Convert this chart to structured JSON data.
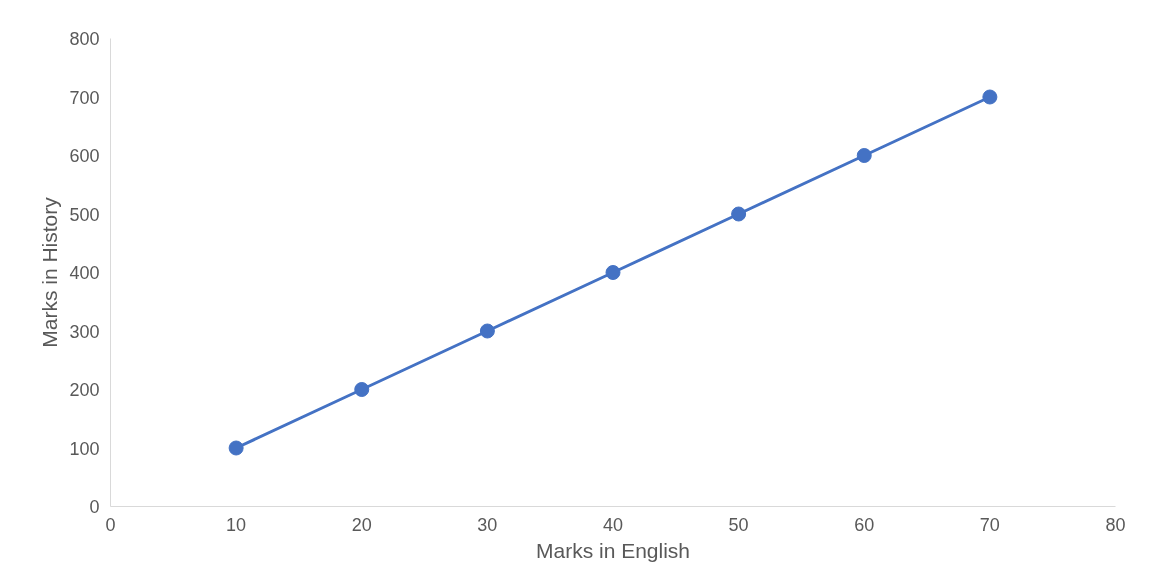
{
  "chart_data": {
    "type": "line",
    "xlabel": "Marks in English",
    "ylabel": "Marks in History",
    "x": [
      10,
      20,
      30,
      40,
      50,
      60,
      70
    ],
    "series": [
      {
        "color": "#4472c4",
        "values": [
          100,
          200,
          300,
          400,
          500,
          600,
          700
        ]
      }
    ],
    "xlim": [
      0,
      80
    ],
    "xticks": [
      0,
      10,
      20,
      30,
      40,
      50,
      60,
      70,
      80
    ],
    "ylim": [
      0,
      800
    ],
    "yticks": [
      0,
      100,
      200,
      300,
      400,
      500,
      600,
      700,
      800
    ],
    "grid": false,
    "marker": "circle",
    "line_style": "solid"
  }
}
